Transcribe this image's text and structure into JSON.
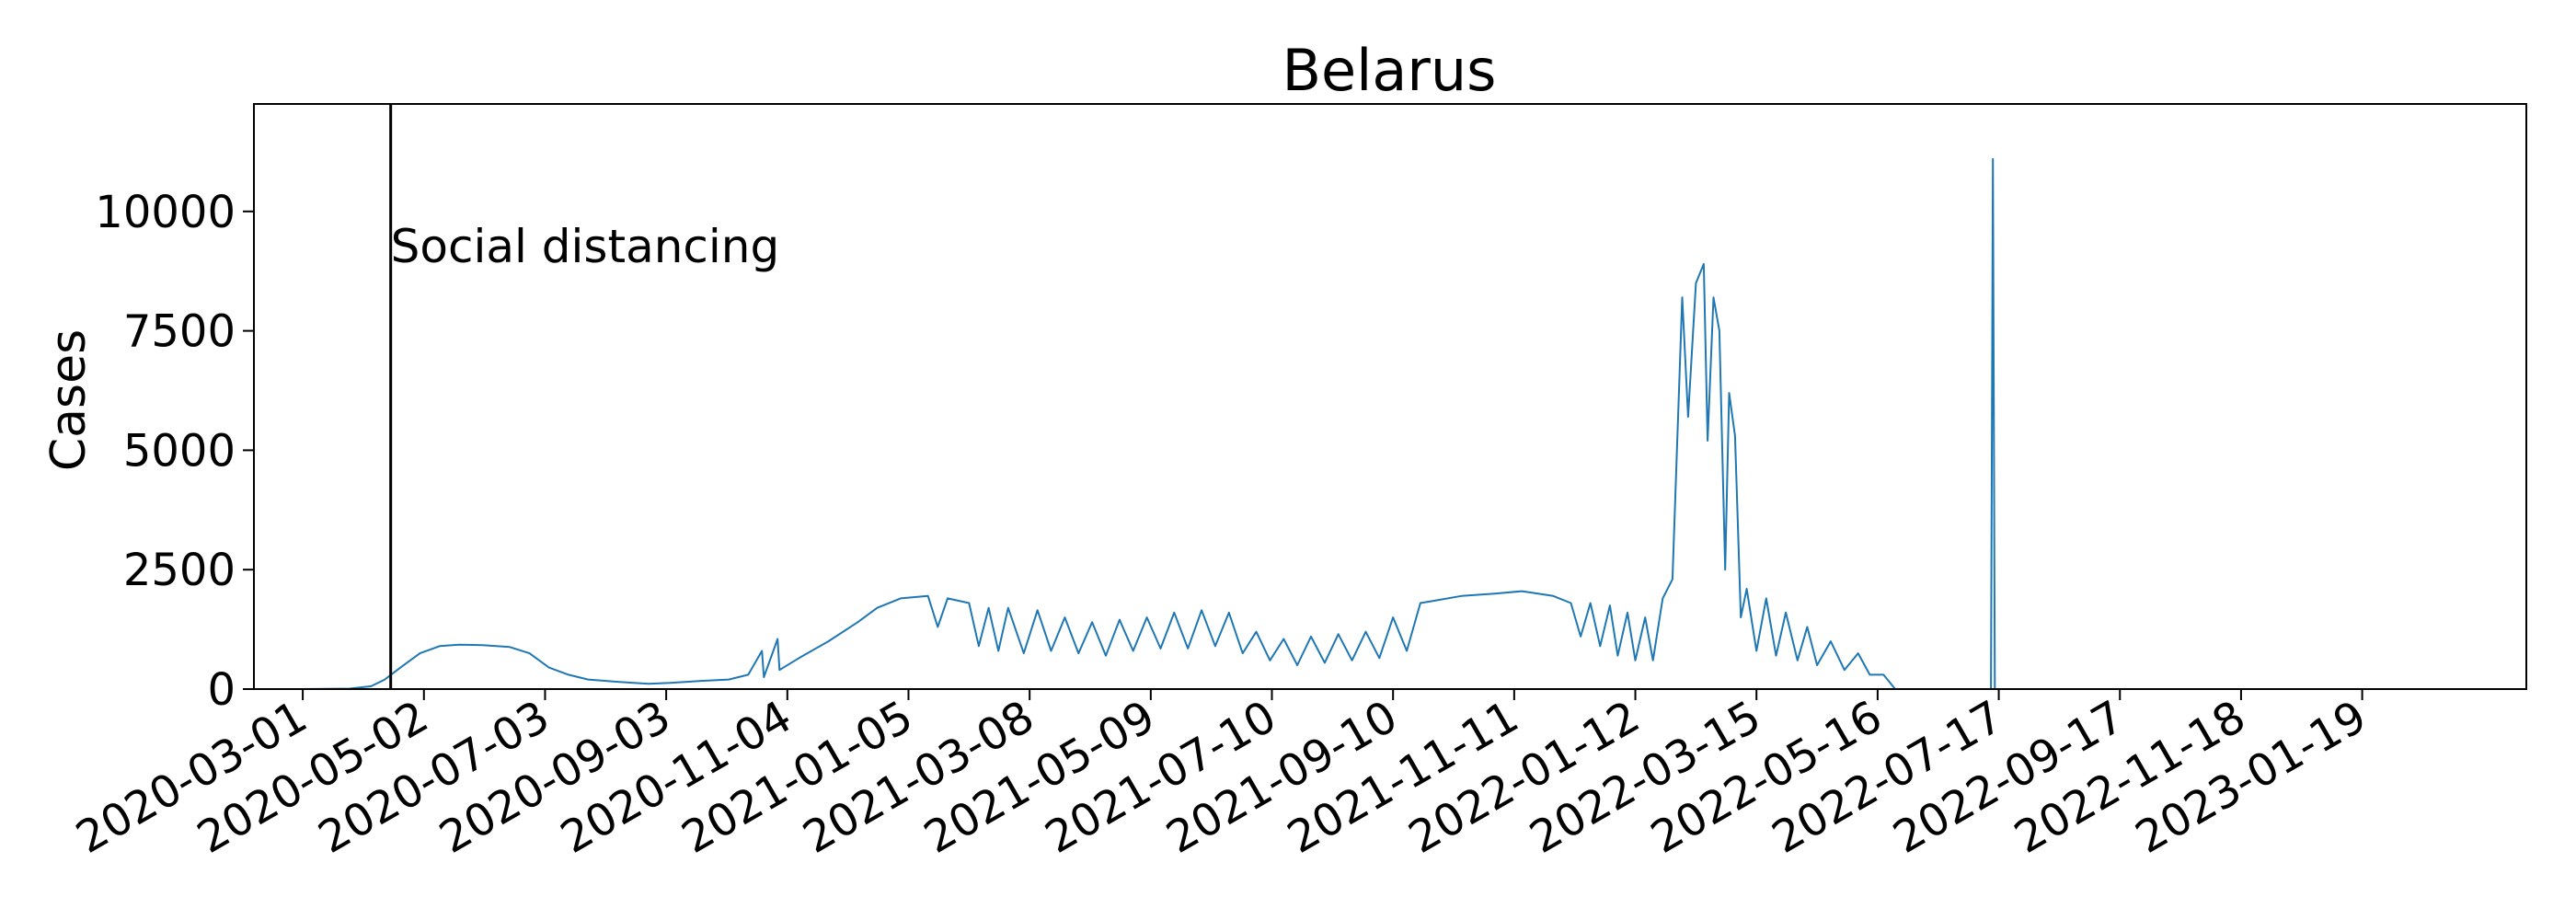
{
  "chart_data": {
    "type": "line",
    "title": "Belarus",
    "xlabel": "",
    "ylabel": "Cases",
    "x_axis_type": "date",
    "xlim": [
      "2020-02-05",
      "2023-04-13"
    ],
    "ylim": [
      0,
      12250
    ],
    "yticks": [
      0,
      2500,
      5000,
      7500,
      10000
    ],
    "xticks": [
      "2020-03-01",
      "2020-05-02",
      "2020-07-03",
      "2020-09-03",
      "2020-11-04",
      "2021-01-05",
      "2021-03-08",
      "2021-05-09",
      "2021-07-10",
      "2021-09-10",
      "2021-11-11",
      "2022-01-12",
      "2022-03-15",
      "2022-05-16",
      "2022-07-17",
      "2022-09-17",
      "2022-11-18",
      "2023-01-19"
    ],
    "grid": false,
    "legend": "none",
    "line_color": "#1f77b4",
    "annotations": [
      {
        "type": "vline",
        "x": "2020-04-15",
        "text": "Social distancing",
        "color": "#000000"
      }
    ],
    "series": [
      {
        "points": [
          [
            "2020-03-01",
            0
          ],
          [
            "2020-03-25",
            10
          ],
          [
            "2020-04-05",
            60
          ],
          [
            "2020-04-12",
            200
          ],
          [
            "2020-04-20",
            450
          ],
          [
            "2020-04-30",
            750
          ],
          [
            "2020-05-10",
            900
          ],
          [
            "2020-05-20",
            930
          ],
          [
            "2020-06-01",
            920
          ],
          [
            "2020-06-15",
            880
          ],
          [
            "2020-06-25",
            750
          ],
          [
            "2020-07-05",
            450
          ],
          [
            "2020-07-15",
            300
          ],
          [
            "2020-07-25",
            200
          ],
          [
            "2020-08-10",
            150
          ],
          [
            "2020-08-25",
            110
          ],
          [
            "2020-09-05",
            130
          ],
          [
            "2020-09-20",
            170
          ],
          [
            "2020-10-05",
            200
          ],
          [
            "2020-10-15",
            300
          ],
          [
            "2020-10-22",
            800
          ],
          [
            "2020-10-23",
            250
          ],
          [
            "2020-10-30",
            1050
          ],
          [
            "2020-10-31",
            400
          ],
          [
            "2020-11-10",
            650
          ],
          [
            "2020-11-25",
            1000
          ],
          [
            "2020-12-10",
            1400
          ],
          [
            "2020-12-20",
            1700
          ],
          [
            "2021-01-01",
            1900
          ],
          [
            "2021-01-15",
            1950
          ],
          [
            "2021-01-20",
            1300
          ],
          [
            "2021-01-25",
            1900
          ],
          [
            "2021-02-05",
            1800
          ],
          [
            "2021-02-10",
            900
          ],
          [
            "2021-02-15",
            1700
          ],
          [
            "2021-02-20",
            800
          ],
          [
            "2021-02-25",
            1700
          ],
          [
            "2021-03-05",
            750
          ],
          [
            "2021-03-12",
            1650
          ],
          [
            "2021-03-19",
            800
          ],
          [
            "2021-03-26",
            1500
          ],
          [
            "2021-04-02",
            750
          ],
          [
            "2021-04-09",
            1400
          ],
          [
            "2021-04-16",
            700
          ],
          [
            "2021-04-23",
            1450
          ],
          [
            "2021-04-30",
            800
          ],
          [
            "2021-05-07",
            1500
          ],
          [
            "2021-05-14",
            850
          ],
          [
            "2021-05-21",
            1600
          ],
          [
            "2021-05-28",
            850
          ],
          [
            "2021-06-04",
            1650
          ],
          [
            "2021-06-11",
            900
          ],
          [
            "2021-06-18",
            1600
          ],
          [
            "2021-06-25",
            750
          ],
          [
            "2021-07-02",
            1200
          ],
          [
            "2021-07-09",
            600
          ],
          [
            "2021-07-16",
            1050
          ],
          [
            "2021-07-23",
            500
          ],
          [
            "2021-07-30",
            1100
          ],
          [
            "2021-08-06",
            550
          ],
          [
            "2021-08-13",
            1150
          ],
          [
            "2021-08-20",
            600
          ],
          [
            "2021-08-27",
            1200
          ],
          [
            "2021-09-03",
            650
          ],
          [
            "2021-09-10",
            1500
          ],
          [
            "2021-09-17",
            800
          ],
          [
            "2021-09-24",
            1800
          ],
          [
            "2021-10-01",
            1850
          ],
          [
            "2021-10-15",
            1950
          ],
          [
            "2021-11-01",
            2000
          ],
          [
            "2021-11-15",
            2050
          ],
          [
            "2021-12-01",
            1950
          ],
          [
            "2021-12-10",
            1800
          ],
          [
            "2021-12-15",
            1100
          ],
          [
            "2021-12-20",
            1800
          ],
          [
            "2021-12-25",
            900
          ],
          [
            "2021-12-30",
            1750
          ],
          [
            "2022-01-03",
            700
          ],
          [
            "2022-01-08",
            1600
          ],
          [
            "2022-01-12",
            600
          ],
          [
            "2022-01-17",
            1500
          ],
          [
            "2022-01-21",
            600
          ],
          [
            "2022-01-26",
            1900
          ],
          [
            "2022-01-31",
            2300
          ],
          [
            "2022-02-05",
            8200
          ],
          [
            "2022-02-08",
            5700
          ],
          [
            "2022-02-12",
            8500
          ],
          [
            "2022-02-16",
            8900
          ],
          [
            "2022-02-18",
            5200
          ],
          [
            "2022-02-21",
            8200
          ],
          [
            "2022-02-24",
            7500
          ],
          [
            "2022-02-27",
            2500
          ],
          [
            "2022-03-01",
            6200
          ],
          [
            "2022-03-04",
            5300
          ],
          [
            "2022-03-07",
            1500
          ],
          [
            "2022-03-10",
            2100
          ],
          [
            "2022-03-15",
            800
          ],
          [
            "2022-03-20",
            1900
          ],
          [
            "2022-03-25",
            700
          ],
          [
            "2022-03-30",
            1600
          ],
          [
            "2022-04-05",
            600
          ],
          [
            "2022-04-10",
            1300
          ],
          [
            "2022-04-15",
            500
          ],
          [
            "2022-04-22",
            1000
          ],
          [
            "2022-04-29",
            400
          ],
          [
            "2022-05-06",
            750
          ],
          [
            "2022-05-12",
            300
          ],
          [
            "2022-05-19",
            300
          ],
          [
            "2022-05-25",
            0
          ],
          [
            "2022-07-13",
            0
          ],
          [
            "2022-07-14",
            11100
          ],
          [
            "2022-07-15",
            0
          ],
          [
            "2023-04-13",
            0
          ]
        ]
      }
    ]
  }
}
